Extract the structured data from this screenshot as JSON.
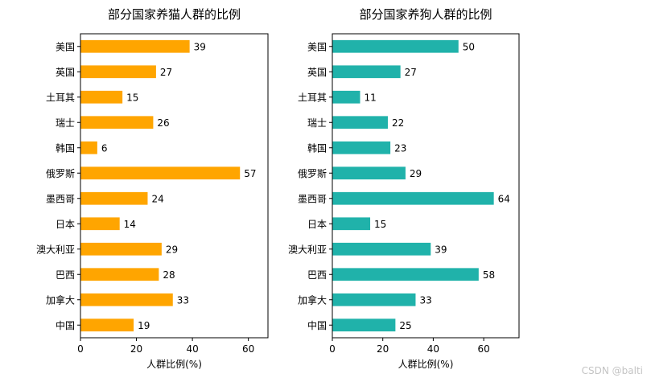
{
  "chart_data": [
    {
      "type": "bar",
      "orientation": "horizontal",
      "title": "部分国家养猫人群的比例",
      "xlabel": "人群比例(%)",
      "ylabel": "",
      "categories": [
        "美国",
        "英国",
        "土耳其",
        "瑞士",
        "韩国",
        "俄罗斯",
        "墨西哥",
        "日本",
        "澳大利亚",
        "巴西",
        "加拿大",
        "中国"
      ],
      "values": [
        39,
        27,
        15,
        26,
        6,
        57,
        24,
        14,
        29,
        28,
        33,
        19
      ],
      "xlim": [
        0,
        67
      ],
      "xticks": [
        0,
        20,
        40,
        60
      ],
      "color": "#ffa500",
      "grid": false
    },
    {
      "type": "bar",
      "orientation": "horizontal",
      "title": "部分国家养狗人群的比例",
      "xlabel": "人群比例(%)",
      "ylabel": "",
      "categories": [
        "美国",
        "英国",
        "土耳其",
        "瑞士",
        "韩国",
        "俄罗斯",
        "墨西哥",
        "日本",
        "澳大利亚",
        "巴西",
        "加拿大",
        "中国"
      ],
      "values": [
        50,
        27,
        11,
        22,
        23,
        29,
        64,
        15,
        39,
        58,
        33,
        25
      ],
      "xlim": [
        0,
        74
      ],
      "xticks": [
        0,
        20,
        40,
        60
      ],
      "color": "#20b2aa",
      "grid": false
    }
  ],
  "watermark": "CSDN @balti"
}
